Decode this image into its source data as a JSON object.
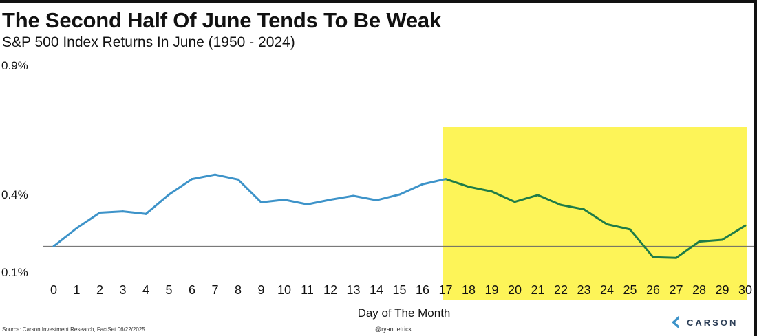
{
  "title": "The Second Half Of June Tends To Be Weak",
  "subtitle": "S&P 500 Index Returns In June (1950 - 2024)",
  "source": "Source: Carson Investment Research, FactSet 06/22/2025",
  "handle": "@ryandetrick",
  "logo": {
    "icon": "carson-chevron-icon",
    "text": "CARSON"
  },
  "colors": {
    "first_half_line": "#3d93c9",
    "second_half_line": "#1e7c47",
    "highlight": "#fdf458",
    "baseline": "#666666"
  },
  "chart_data": {
    "type": "line",
    "title": "The Second Half Of June Tends To Be Weak",
    "subtitle": "S&P 500 Index Returns In June (1950 - 2024)",
    "xlabel": "Day of The Month",
    "ylabel": "",
    "x": [
      0,
      1,
      2,
      3,
      4,
      5,
      6,
      7,
      8,
      9,
      10,
      11,
      12,
      13,
      14,
      15,
      16,
      17,
      18,
      19,
      20,
      21,
      22,
      23,
      24,
      25,
      26,
      27,
      28,
      29,
      30
    ],
    "x_tick_labels": [
      "0",
      "1",
      "2",
      "3",
      "4",
      "5",
      "6",
      "7",
      "8",
      "9",
      "10",
      "11",
      "12",
      "13",
      "14",
      "15",
      "16",
      "17",
      "18",
      "19",
      "20",
      "21",
      "22",
      "23",
      "24",
      "25",
      "26",
      "27",
      "28",
      "29",
      "30"
    ],
    "series": [
      {
        "values": [
          0.2,
          0.27,
          0.33,
          0.335,
          0.325,
          0.4,
          0.46,
          0.477,
          0.458,
          0.37,
          0.38,
          0.362,
          0.38,
          0.395,
          0.378,
          0.4,
          0.44,
          0.46,
          0.43,
          0.412,
          0.372,
          0.398,
          0.36,
          0.343,
          0.285,
          0.265,
          0.158,
          0.155,
          0.218,
          0.225,
          0.28
        ]
      }
    ],
    "y_tick_labels": [
      "0.9%",
      "0.4%",
      "0.1%"
    ],
    "y_ticks": [
      0.9,
      0.4,
      0.1
    ],
    "ylim": [
      0.1,
      0.9
    ],
    "baseline": 0.2,
    "highlight_range": [
      17,
      30
    ],
    "grid": false,
    "legend": "none"
  }
}
